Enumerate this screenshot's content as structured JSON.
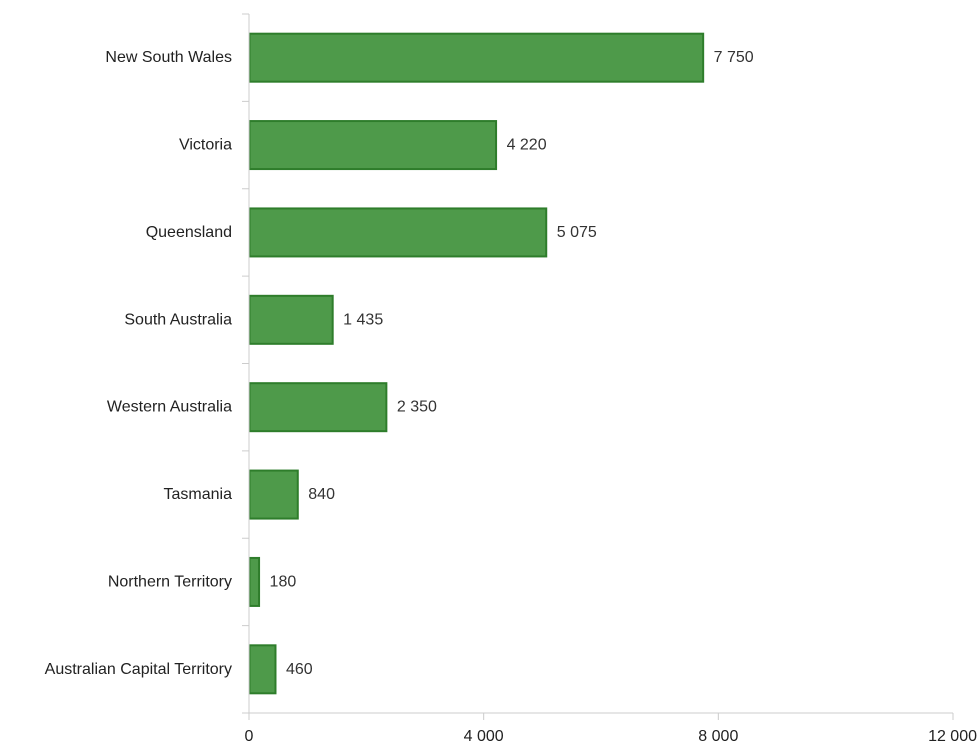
{
  "chart_data": {
    "type": "bar",
    "orientation": "horizontal",
    "categories": [
      "New South Wales",
      "Victoria",
      "Queensland",
      "South Australia",
      "Western Australia",
      "Tasmania",
      "Northern Territory",
      "Australian Capital Territory"
    ],
    "values": [
      7750,
      4220,
      5075,
      1435,
      2350,
      840,
      180,
      460
    ],
    "value_labels": [
      "7 750",
      "4 220",
      "5 075",
      "1 435",
      "2 350",
      "840",
      "180",
      "460"
    ],
    "title": "",
    "xlabel": "",
    "ylabel": "",
    "xlim": [
      0,
      12000
    ],
    "x_ticks": [
      0,
      4000,
      8000,
      12000
    ],
    "x_tick_labels": [
      "0",
      "4 000",
      "8 000",
      "12 000"
    ],
    "grid": false,
    "legend": "none",
    "colors": {
      "bar_fill": "#4e9a4a",
      "bar_stroke": "#2e7d2b",
      "axis": "#cccccc"
    }
  }
}
